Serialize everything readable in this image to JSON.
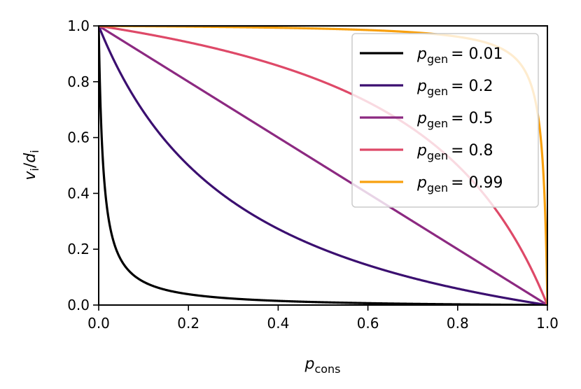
{
  "chart_data": {
    "type": "line",
    "xlabel": {
      "main": "p",
      "sub": "cons"
    },
    "ylabel": "v_i/d_i",
    "ylabel_parts": {
      "v": "v",
      "i1": "i",
      "slash": "/",
      "d": "d",
      "i2": "i"
    },
    "xlim": [
      0.0,
      1.0
    ],
    "ylim": [
      0.0,
      1.0
    ],
    "xticks": [
      "0.0",
      "0.2",
      "0.4",
      "0.6",
      "0.8",
      "1.0"
    ],
    "yticks": [
      "0.0",
      "0.2",
      "0.4",
      "0.6",
      "0.8",
      "1.0"
    ],
    "grid": false,
    "legend_position": "upper-right",
    "series": [
      {
        "name": "0.01",
        "p_gen": 0.01,
        "color": "#000000",
        "label_prefix": "p",
        "label_sub": "gen",
        "label_eq": "= 0.01"
      },
      {
        "name": "0.2",
        "p_gen": 0.2,
        "color": "#3b0f70",
        "label_prefix": "p",
        "label_sub": "gen",
        "label_eq": "= 0.2"
      },
      {
        "name": "0.5",
        "p_gen": 0.5,
        "color": "#8c2981",
        "label_prefix": "p",
        "label_sub": "gen",
        "label_eq": "= 0.5"
      },
      {
        "name": "0.8",
        "p_gen": 0.8,
        "color": "#de4968",
        "label_prefix": "p",
        "label_sub": "gen",
        "label_eq": "= 0.8"
      },
      {
        "name": "0.99",
        "p_gen": 0.99,
        "color": "#f8a00f",
        "label_prefix": "p",
        "label_sub": "gen",
        "label_eq": "= 0.99"
      }
    ]
  }
}
